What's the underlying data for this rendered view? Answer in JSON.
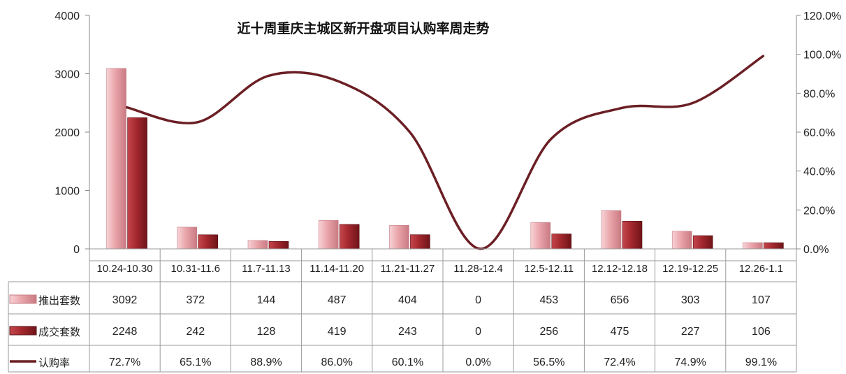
{
  "chart_data": {
    "type": "bar",
    "title": "近十周重庆主城区新开盘项目认购率周走势",
    "categories": [
      "10.24-10.30",
      "10.31-11.6",
      "11.7-11.13",
      "11.14-11.20",
      "11.21-11.27",
      "11.28-12.4",
      "12.5-12.11",
      "12.12-12.18",
      "12.19-12.25",
      "12.26-1.1"
    ],
    "series": [
      {
        "name": "推出套数",
        "type": "bar",
        "axis": "left",
        "color": "#e8a0a6",
        "values": [
          3092,
          372,
          144,
          487,
          404,
          0,
          453,
          656,
          303,
          107
        ]
      },
      {
        "name": "成交套数",
        "type": "bar",
        "axis": "left",
        "color": "#9e2a2f",
        "values": [
          2248,
          242,
          128,
          419,
          243,
          0,
          256,
          475,
          227,
          106
        ]
      },
      {
        "name": "认购率",
        "type": "line",
        "axis": "right",
        "color": "#6b1f24",
        "values": [
          72.7,
          65.1,
          88.9,
          86.0,
          60.1,
          0.0,
          56.5,
          72.4,
          74.9,
          99.1
        ]
      }
    ],
    "table_rows": [
      [
        "3092",
        "372",
        "144",
        "487",
        "404",
        "0",
        "453",
        "656",
        "303",
        "107"
      ],
      [
        "2248",
        "242",
        "128",
        "419",
        "243",
        "0",
        "256",
        "475",
        "227",
        "106"
      ],
      [
        "72.7%",
        "65.1%",
        "88.9%",
        "86.0%",
        "60.1%",
        "0.0%",
        "56.5%",
        "72.4%",
        "74.9%",
        "99.1%"
      ]
    ],
    "y_left": {
      "min": 0,
      "max": 4000,
      "ticks": [
        "0",
        "1000",
        "2000",
        "3000",
        "4000"
      ]
    },
    "y_right": {
      "min": 0,
      "max": 120,
      "ticks": [
        "0.0%",
        "20.0%",
        "40.0%",
        "60.0%",
        "80.0%",
        "100.0%",
        "120.0%"
      ]
    },
    "grid": false,
    "legend": "data-table"
  }
}
